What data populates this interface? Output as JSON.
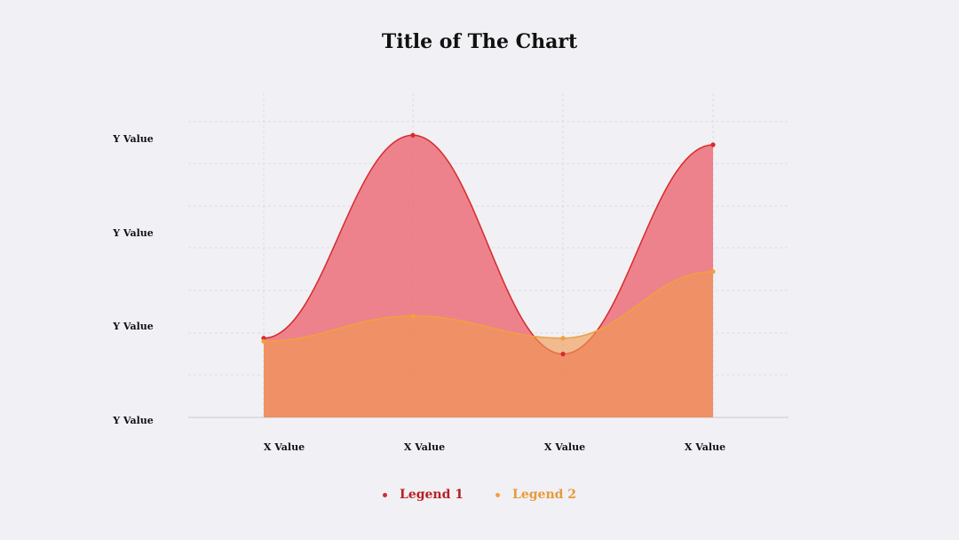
{
  "chart_data": {
    "type": "area",
    "title": "Title of The Chart",
    "categories": [
      "X Value",
      "X Value",
      "X Value",
      "X Value"
    ],
    "y_tick_labels": [
      "Y Value",
      "Y Value",
      "Y Value",
      "Y Value"
    ],
    "ylim": [
      0,
      100
    ],
    "grid": true,
    "legend_position": "bottom",
    "series": [
      {
        "name": "Legend 1",
        "values": [
          25,
          89,
          20,
          86
        ],
        "color": "#d62b2b",
        "fill": "#ec6f79"
      },
      {
        "name": "Legend 2",
        "values": [
          24,
          32,
          25,
          46
        ],
        "color": "#efa13f",
        "fill": "#f09a50"
      }
    ]
  }
}
